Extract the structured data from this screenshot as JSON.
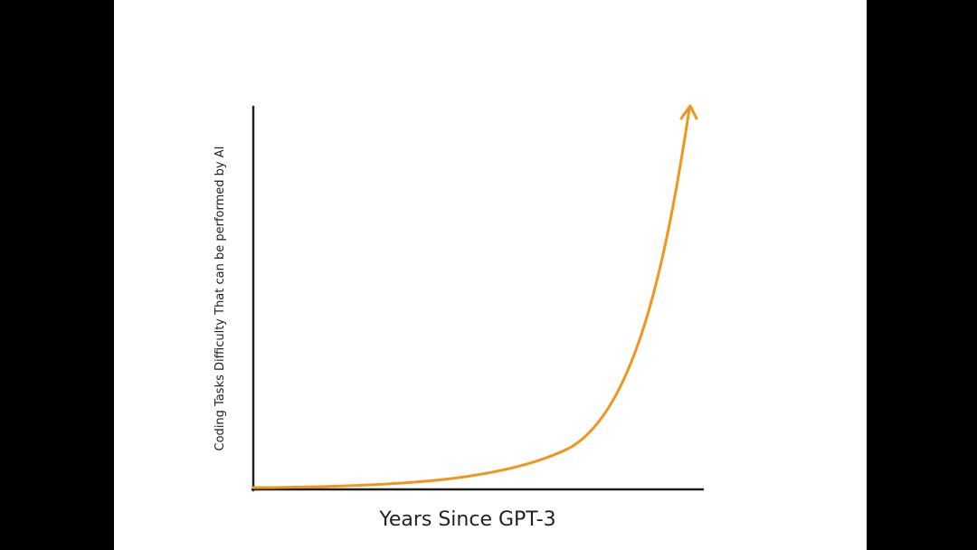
{
  "chart": {
    "y_label": "Coding Tasks Difficulty That can be performed by AI",
    "x_label": "Years Since GPT-3"
  }
}
